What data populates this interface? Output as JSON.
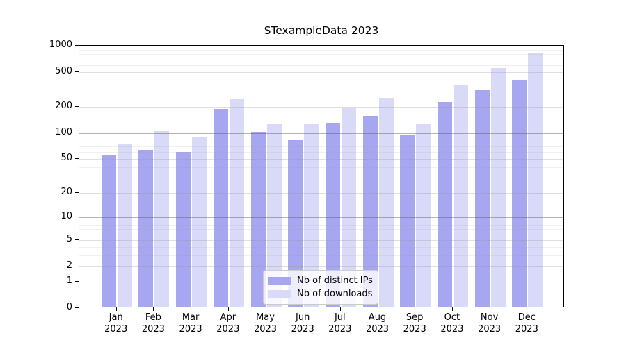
{
  "figure": {
    "background": "#ffffff",
    "text_color": "#000000"
  },
  "chart_data": {
    "type": "bar",
    "title": "STexampleData 2023",
    "categories": [
      "Jan",
      "Feb",
      "Mar",
      "Apr",
      "May",
      "Jun",
      "Jul",
      "Aug",
      "Sep",
      "Oct",
      "Nov",
      "Dec"
    ],
    "category_sublabel": "2023",
    "series": [
      {
        "name": "Nb of distinct IPs",
        "color": "#a6a6f1",
        "values": [
          54,
          62,
          58,
          182,
          100,
          80,
          127,
          151,
          93,
          218,
          305,
          396
        ]
      },
      {
        "name": "Nb of downloads",
        "color": "#d9d9f8",
        "values": [
          71,
          101,
          86,
          235,
          122,
          125,
          190,
          246,
          124,
          338,
          535,
          795
        ]
      }
    ],
    "y_axis": {
      "scale": "symlog-ln(1+v)",
      "ticks": [
        0,
        1,
        2,
        5,
        10,
        20,
        50,
        100,
        200,
        500,
        1000
      ],
      "minor_tick_multipliers": [
        3,
        4,
        6,
        7,
        8,
        9
      ],
      "top_value": 1010
    },
    "grid": "on",
    "legend_position": "bottom-center"
  }
}
